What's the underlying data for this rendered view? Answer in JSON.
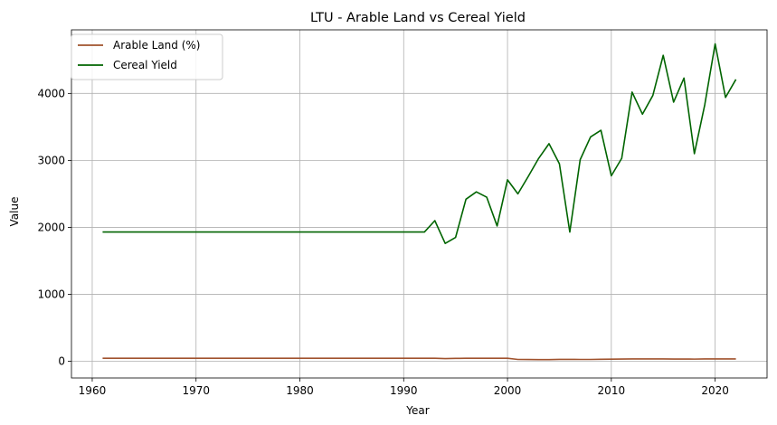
{
  "chart_data": {
    "type": "line",
    "title": "LTU - Arable Land vs Cereal Yield",
    "xlabel": "Year",
    "ylabel": "Value",
    "xlim": [
      1958,
      2025
    ],
    "ylim": [
      -250,
      4950
    ],
    "xticks": [
      1960,
      1970,
      1980,
      1990,
      2000,
      2010,
      2020
    ],
    "yticks": [
      0,
      1000,
      2000,
      3000,
      4000
    ],
    "grid": true,
    "legend_position": "upper-left",
    "x": [
      1961,
      1962,
      1963,
      1964,
      1965,
      1966,
      1967,
      1968,
      1969,
      1970,
      1971,
      1972,
      1973,
      1974,
      1975,
      1976,
      1977,
      1978,
      1979,
      1980,
      1981,
      1982,
      1983,
      1984,
      1985,
      1986,
      1987,
      1988,
      1989,
      1990,
      1991,
      1992,
      1993,
      1994,
      1995,
      1996,
      1997,
      1998,
      1999,
      2000,
      2001,
      2002,
      2003,
      2004,
      2005,
      2006,
      2007,
      2008,
      2009,
      2010,
      2011,
      2012,
      2013,
      2014,
      2015,
      2016,
      2017,
      2018,
      2019,
      2020,
      2021,
      2022
    ],
    "series": [
      {
        "name": "Arable Land (%)",
        "color": "#a0522d",
        "values": [
          45,
          45,
          45,
          45,
          45,
          45,
          45,
          45,
          45,
          45,
          45,
          45,
          45,
          45,
          45,
          45,
          45,
          45,
          45,
          45,
          45,
          45,
          45,
          45,
          45,
          45,
          45,
          45,
          45,
          45,
          45,
          45,
          44,
          40,
          43,
          44,
          44,
          44,
          45,
          45,
          27,
          26,
          25,
          25,
          28,
          28,
          27,
          27,
          29,
          31,
          33,
          34,
          35,
          35,
          34,
          33,
          33,
          32,
          34,
          35,
          35,
          35
        ]
      },
      {
        "name": "Cereal Yield",
        "color": "#006400",
        "values": [
          1930,
          1930,
          1930,
          1930,
          1930,
          1930,
          1930,
          1930,
          1930,
          1930,
          1930,
          1930,
          1930,
          1930,
          1930,
          1930,
          1930,
          1930,
          1930,
          1930,
          1930,
          1930,
          1930,
          1930,
          1930,
          1930,
          1930,
          1930,
          1930,
          1930,
          1930,
          1930,
          2100,
          1760,
          1850,
          2420,
          2530,
          2450,
          2020,
          2710,
          2500,
          2760,
          3030,
          3250,
          2950,
          1930,
          3010,
          3350,
          3450,
          2770,
          3030,
          4020,
          3690,
          3970,
          4570,
          3870,
          4230,
          3100,
          3830,
          4740,
          3940,
          4210
        ]
      }
    ]
  }
}
